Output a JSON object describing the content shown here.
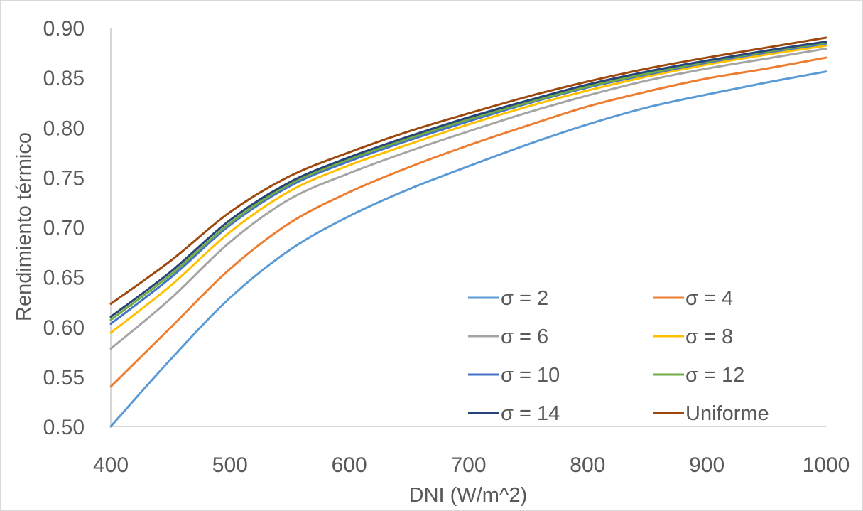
{
  "chart_data": {
    "type": "line",
    "title": "",
    "xlabel": "DNI (W/m^2)",
    "ylabel": "Rendimiento térmico",
    "xlim": [
      400,
      1000
    ],
    "ylim": [
      0.5,
      0.9
    ],
    "x_ticks": [
      "400",
      "500",
      "600",
      "700",
      "800",
      "900",
      "1000"
    ],
    "y_ticks": [
      "0.50",
      "0.55",
      "0.60",
      "0.65",
      "0.70",
      "0.75",
      "0.80",
      "0.85",
      "0.90"
    ],
    "grid": false,
    "legend_position": "bottom-right",
    "x": [
      400,
      450,
      500,
      550,
      600,
      650,
      700,
      750,
      800,
      850,
      900,
      950,
      1000
    ],
    "series": [
      {
        "name": "σ = 2",
        "color": "#5B9BD5",
        "values": [
          0.5,
          0.567,
          0.629,
          0.677,
          0.711,
          0.738,
          0.761,
          0.783,
          0.803,
          0.82,
          0.833,
          0.845,
          0.856
        ]
      },
      {
        "name": "σ = 4",
        "color": "#ED7D31",
        "values": [
          0.54,
          0.599,
          0.658,
          0.704,
          0.735,
          0.76,
          0.782,
          0.802,
          0.821,
          0.836,
          0.849,
          0.859,
          0.87
        ]
      },
      {
        "name": "σ = 6",
        "color": "#A5A5A5",
        "values": [
          0.578,
          0.628,
          0.685,
          0.728,
          0.754,
          0.776,
          0.796,
          0.815,
          0.832,
          0.847,
          0.859,
          0.869,
          0.879
        ]
      },
      {
        "name": "σ = 8",
        "color": "#FFC000",
        "values": [
          0.594,
          0.641,
          0.695,
          0.736,
          0.762,
          0.783,
          0.803,
          0.821,
          0.837,
          0.851,
          0.863,
          0.873,
          0.882
        ]
      },
      {
        "name": "σ = 10",
        "color": "#4472C4",
        "values": [
          0.603,
          0.649,
          0.702,
          0.741,
          0.766,
          0.787,
          0.806,
          0.824,
          0.84,
          0.853,
          0.865,
          0.875,
          0.884
        ]
      },
      {
        "name": "σ = 12",
        "color": "#70AD47",
        "values": [
          0.607,
          0.652,
          0.704,
          0.743,
          0.768,
          0.789,
          0.808,
          0.825,
          0.841,
          0.854,
          0.866,
          0.876,
          0.885
        ]
      },
      {
        "name": "σ = 14",
        "color": "#264478",
        "values": [
          0.61,
          0.655,
          0.707,
          0.745,
          0.77,
          0.791,
          0.81,
          0.827,
          0.843,
          0.856,
          0.867,
          0.877,
          0.886
        ]
      },
      {
        "name": "Uniforme",
        "color": "#9E480E",
        "values": [
          0.623,
          0.666,
          0.715,
          0.751,
          0.775,
          0.796,
          0.814,
          0.831,
          0.846,
          0.859,
          0.87,
          0.88,
          0.89
        ]
      }
    ]
  },
  "colors": {
    "axis": "#BFBFBF",
    "text": "#595959"
  }
}
